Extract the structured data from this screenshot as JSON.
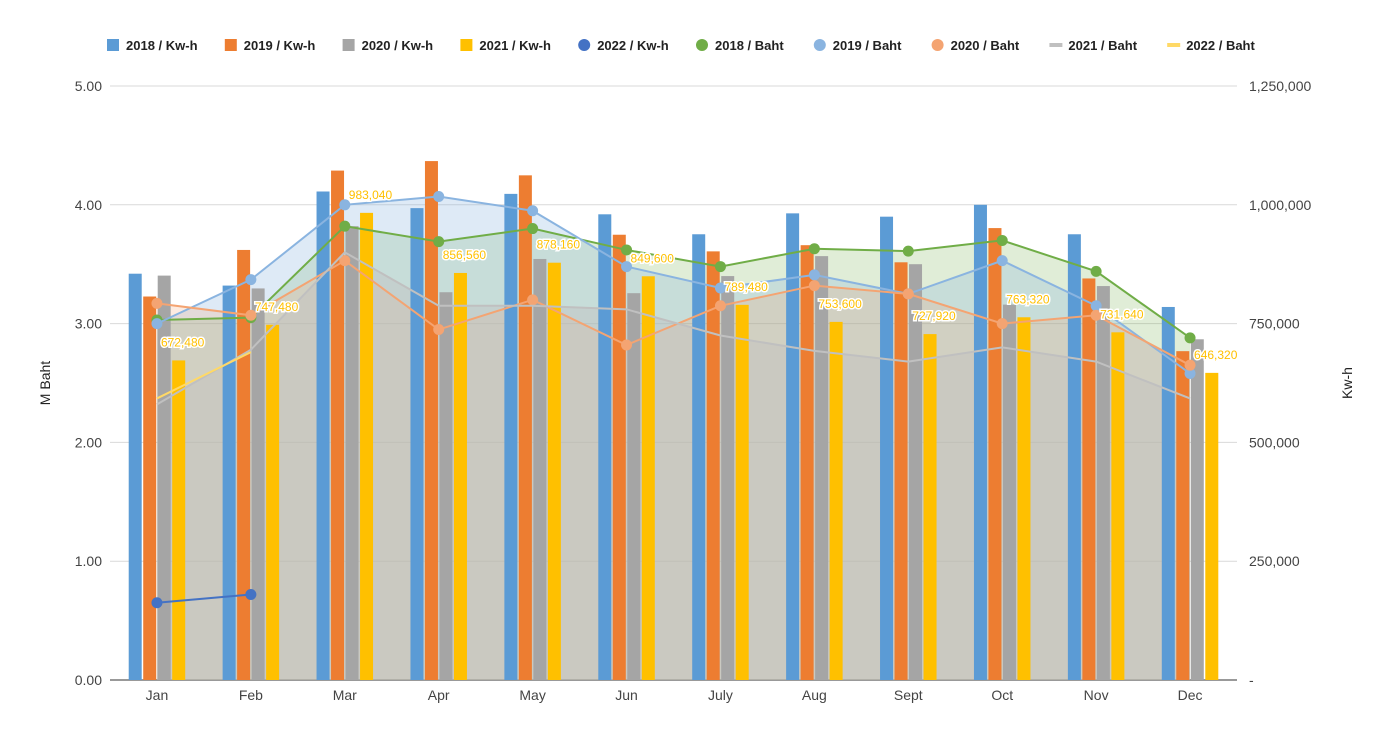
{
  "chart_data": {
    "type": "bar",
    "combo": "bars (Kw-h, right axis) + lines/areas (Baht, left axis)",
    "categories": [
      "Jan",
      "Feb",
      "Mar",
      "Apr",
      "May",
      "Jun",
      "July",
      "Aug",
      "Sept",
      "Oct",
      "Nov",
      "Dec"
    ],
    "ylabel_left": "M Baht",
    "ylabel_right": "Kw-h",
    "ylim_left": [
      0,
      5
    ],
    "ylim_right": [
      0,
      1250000
    ],
    "yticks_left": [
      "0.00",
      "1.00",
      "2.00",
      "3.00",
      "4.00",
      "5.00"
    ],
    "yticks_right": [
      "-",
      "250,000",
      "500,000",
      "750,000",
      "1,000,000",
      "1,250,000"
    ],
    "grid": true,
    "legend_position": "top",
    "bar_series": [
      {
        "name": "2018 / Kw-h",
        "color": "#5b9bd5",
        "values": [
          855000,
          830000,
          1028000,
          993000,
          1023000,
          980000,
          938000,
          982000,
          975000,
          1000000,
          938000,
          785000
        ]
      },
      {
        "name": "2019 / Kw-h",
        "color": "#ed7d31",
        "values": [
          807000,
          905000,
          1072000,
          1092000,
          1062000,
          937000,
          902000,
          915000,
          879000,
          951000,
          845000,
          692000
        ]
      },
      {
        "name": "2020 / Kw-h",
        "color": "#a5a5a5",
        "values": [
          851000,
          824000,
          955000,
          816000,
          886000,
          814000,
          850000,
          892000,
          875000,
          790000,
          829000,
          717000
        ]
      },
      {
        "name": "2021 / Kw-h",
        "color": "#ffc000",
        "values": [
          672480,
          747480,
          983040,
          856560,
          878160,
          849600,
          789480,
          753600,
          727920,
          763320,
          731640,
          646320
        ]
      }
    ],
    "bar_data_labels": [
      "672,480",
      "747,480",
      "983,040",
      "856,560",
      "878,160",
      "849,600",
      "789,480",
      "753,600",
      "727,920",
      "763,320",
      "731,640",
      "646,320"
    ],
    "line_series": [
      {
        "name": "2022 / Kw-h",
        "color": "#4472c4",
        "values": [
          0.65,
          0.72,
          null,
          null,
          null,
          null,
          null,
          null,
          null,
          null,
          null,
          null
        ],
        "marker": true
      },
      {
        "name": "2018 / Baht",
        "color": "#70ad47",
        "values": [
          3.03,
          3.05,
          3.82,
          3.69,
          3.8,
          3.62,
          3.48,
          3.63,
          3.61,
          3.7,
          3.44,
          2.88
        ],
        "marker": true,
        "area": true
      },
      {
        "name": "2019 / Baht",
        "color": "#8ab4e0",
        "values": [
          3.0,
          3.37,
          4.0,
          4.07,
          3.95,
          3.48,
          3.3,
          3.41,
          3.25,
          3.53,
          3.15,
          2.58
        ],
        "marker": true,
        "area": true
      },
      {
        "name": "2020 / Baht",
        "color": "#f4a472",
        "values": [
          3.17,
          3.07,
          3.53,
          2.95,
          3.2,
          2.82,
          3.15,
          3.32,
          3.25,
          3.0,
          3.07,
          2.65
        ],
        "marker": true,
        "area": true
      },
      {
        "name": "2021 / Baht",
        "color": "#c0c0c0",
        "values": [
          2.32,
          2.78,
          3.6,
          3.15,
          3.15,
          3.12,
          2.9,
          2.77,
          2.68,
          2.8,
          2.68,
          2.37
        ],
        "marker": false,
        "area": true
      },
      {
        "name": "2022 / Baht",
        "color": "#ffd966",
        "values": [
          2.37,
          2.76,
          null,
          null,
          null,
          null,
          null,
          null,
          null,
          null,
          null,
          null
        ],
        "marker": false
      }
    ]
  }
}
